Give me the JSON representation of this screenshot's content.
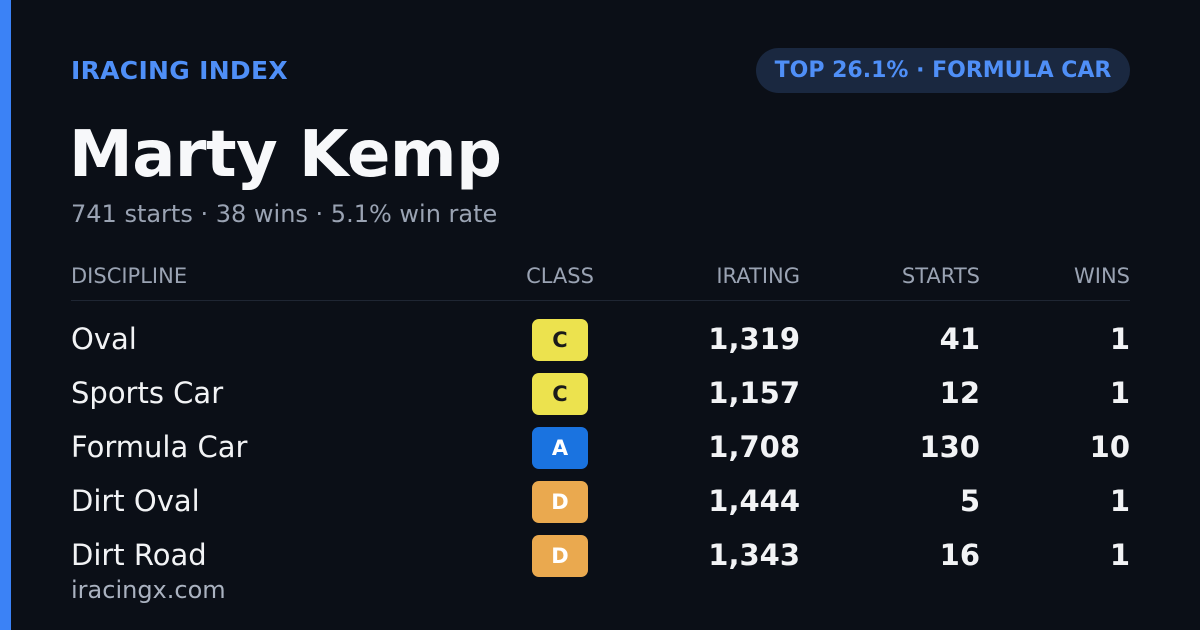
{
  "header": {
    "brand": "IRACING INDEX",
    "badge": "TOP 26.1% · FORMULA CAR"
  },
  "profile": {
    "name": "Marty Kemp",
    "summary": "741 starts · 38 wins · 5.1% win rate"
  },
  "table": {
    "columns": [
      "DISCIPLINE",
      "CLASS",
      "IRATING",
      "STARTS",
      "WINS"
    ],
    "rows": [
      [
        "Oval",
        "C",
        "1,319",
        "41",
        "1"
      ],
      [
        "Sports Car",
        "C",
        "1,157",
        "12",
        "1"
      ],
      [
        "Formula Car",
        "A",
        "1,708",
        "130",
        "10"
      ],
      [
        "Dirt Oval",
        "D",
        "1,444",
        "5",
        "1"
      ],
      [
        "Dirt Road",
        "D",
        "1,343",
        "16",
        "1"
      ]
    ],
    "class_colors": [
      "#ece24e",
      "#ece24e",
      "#1a73e0",
      "#eaa94f",
      "#eaa94f"
    ],
    "class_text_colors": [
      "#1a1a1a",
      "#1a1a1a",
      "#ffffff",
      "#ffffff",
      "#ffffff"
    ]
  },
  "footer": {
    "site": "iracingx.com"
  }
}
